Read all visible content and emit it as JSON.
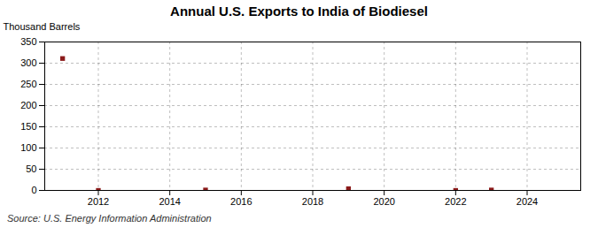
{
  "chart_data": {
    "type": "scatter",
    "title": "Annual U.S. Exports to India of Biodiesel",
    "ylabel": "Thousand Barrels",
    "source": "Source: U.S. Energy Information Administration",
    "x": [
      2011,
      2012,
      2015,
      2019,
      2022,
      2023
    ],
    "values": [
      311,
      0,
      1,
      4,
      0,
      1
    ],
    "color": "#8b1a1a",
    "marker": "square",
    "xlim": [
      2010.5,
      2025.5
    ],
    "ylim": [
      0,
      350
    ],
    "xticks": [
      2012,
      2014,
      2016,
      2018,
      2020,
      2022,
      2024
    ],
    "yticks": [
      0,
      50,
      100,
      150,
      200,
      250,
      300,
      350
    ],
    "grid": true
  }
}
